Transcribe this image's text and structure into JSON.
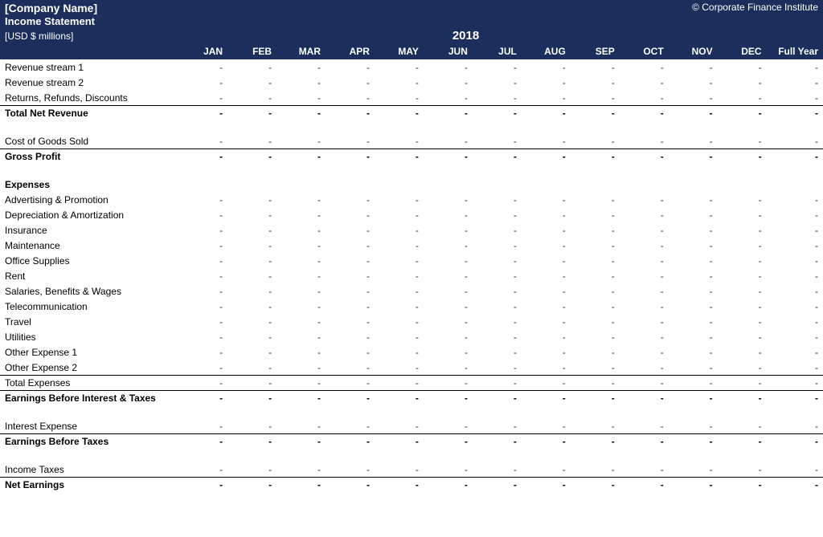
{
  "colors": {
    "header_bg": "#1c2e5b",
    "header_text": "#ffffff",
    "value_text": "#1c2e5b",
    "body_text": "#000000",
    "border": "#000000",
    "background": "#ffffff"
  },
  "header": {
    "company_name": "[Company Name]",
    "copyright": "© Corporate Finance Institute",
    "subtitle": "Income Statement",
    "units": "[USD $ millions]",
    "year": "2018"
  },
  "columns": [
    "JAN",
    "FEB",
    "MAR",
    "APR",
    "MAY",
    "JUN",
    "JUL",
    "AUG",
    "SEP",
    "OCT",
    "NOV",
    "DEC",
    "Full Year"
  ],
  "rows": [
    {
      "label": "Revenue stream 1",
      "type": "data",
      "values": [
        "-",
        "-",
        "-",
        "-",
        "-",
        "-",
        "-",
        "-",
        "-",
        "-",
        "-",
        "-",
        "-"
      ]
    },
    {
      "label": "Revenue stream 2",
      "type": "data",
      "values": [
        "-",
        "-",
        "-",
        "-",
        "-",
        "-",
        "-",
        "-",
        "-",
        "-",
        "-",
        "-",
        "-"
      ]
    },
    {
      "label": "Returns, Refunds, Discounts",
      "type": "data",
      "values": [
        "-",
        "-",
        "-",
        "-",
        "-",
        "-",
        "-",
        "-",
        "-",
        "-",
        "-",
        "-",
        "-"
      ],
      "border_bottom": true
    },
    {
      "label": "Total Net Revenue",
      "type": "total",
      "values": [
        "-",
        "-",
        "-",
        "-",
        "-",
        "-",
        "-",
        "-",
        "-",
        "-",
        "-",
        "-",
        "-"
      ]
    },
    {
      "type": "spacer"
    },
    {
      "label": "Cost of Goods Sold",
      "type": "data",
      "values": [
        "-",
        "-",
        "-",
        "-",
        "-",
        "-",
        "-",
        "-",
        "-",
        "-",
        "-",
        "-",
        "-"
      ],
      "border_bottom": true
    },
    {
      "label": "Gross Profit",
      "type": "total",
      "values": [
        "-",
        "-",
        "-",
        "-",
        "-",
        "-",
        "-",
        "-",
        "-",
        "-",
        "-",
        "-",
        "-"
      ]
    },
    {
      "type": "spacer"
    },
    {
      "label": "Expenses",
      "type": "section"
    },
    {
      "label": "Advertising & Promotion",
      "type": "data",
      "values": [
        "-",
        "-",
        "-",
        "-",
        "-",
        "-",
        "-",
        "-",
        "-",
        "-",
        "-",
        "-",
        "-"
      ]
    },
    {
      "label": "Depreciation & Amortization",
      "type": "data",
      "values": [
        "-",
        "-",
        "-",
        "-",
        "-",
        "-",
        "-",
        "-",
        "-",
        "-",
        "-",
        "-",
        "-"
      ]
    },
    {
      "label": "Insurance",
      "type": "data",
      "values": [
        "-",
        "-",
        "-",
        "-",
        "-",
        "-",
        "-",
        "-",
        "-",
        "-",
        "-",
        "-",
        "-"
      ]
    },
    {
      "label": "Maintenance",
      "type": "data",
      "values": [
        "-",
        "-",
        "-",
        "-",
        "-",
        "-",
        "-",
        "-",
        "-",
        "-",
        "-",
        "-",
        "-"
      ]
    },
    {
      "label": "Office Supplies",
      "type": "data",
      "values": [
        "-",
        "-",
        "-",
        "-",
        "-",
        "-",
        "-",
        "-",
        "-",
        "-",
        "-",
        "-",
        "-"
      ]
    },
    {
      "label": "Rent",
      "type": "data",
      "values": [
        "-",
        "-",
        "-",
        "-",
        "-",
        "-",
        "-",
        "-",
        "-",
        "-",
        "-",
        "-",
        "-"
      ]
    },
    {
      "label": "Salaries, Benefits & Wages",
      "type": "data",
      "values": [
        "-",
        "-",
        "-",
        "-",
        "-",
        "-",
        "-",
        "-",
        "-",
        "-",
        "-",
        "-",
        "-"
      ]
    },
    {
      "label": "Telecommunication",
      "type": "data",
      "values": [
        "-",
        "-",
        "-",
        "-",
        "-",
        "-",
        "-",
        "-",
        "-",
        "-",
        "-",
        "-",
        "-"
      ]
    },
    {
      "label": "Travel",
      "type": "data",
      "values": [
        "-",
        "-",
        "-",
        "-",
        "-",
        "-",
        "-",
        "-",
        "-",
        "-",
        "-",
        "-",
        "-"
      ]
    },
    {
      "label": "Utilities",
      "type": "data",
      "values": [
        "-",
        "-",
        "-",
        "-",
        "-",
        "-",
        "-",
        "-",
        "-",
        "-",
        "-",
        "-",
        "-"
      ]
    },
    {
      "label": "Other Expense 1",
      "type": "data",
      "values": [
        "-",
        "-",
        "-",
        "-",
        "-",
        "-",
        "-",
        "-",
        "-",
        "-",
        "-",
        "-",
        "-"
      ]
    },
    {
      "label": "Other Expense 2",
      "type": "data",
      "values": [
        "-",
        "-",
        "-",
        "-",
        "-",
        "-",
        "-",
        "-",
        "-",
        "-",
        "-",
        "-",
        "-"
      ],
      "border_bottom": true
    },
    {
      "label": "Total Expenses",
      "type": "data",
      "values": [
        "-",
        "-",
        "-",
        "-",
        "-",
        "-",
        "-",
        "-",
        "-",
        "-",
        "-",
        "-",
        "-"
      ],
      "border_bottom": true
    },
    {
      "label": "Earnings Before Interest & Taxes",
      "type": "total",
      "values": [
        "-",
        "-",
        "-",
        "-",
        "-",
        "-",
        "-",
        "-",
        "-",
        "-",
        "-",
        "-",
        "-"
      ]
    },
    {
      "type": "spacer"
    },
    {
      "label": "Interest Expense",
      "type": "data",
      "values": [
        "-",
        "-",
        "-",
        "-",
        "-",
        "-",
        "-",
        "-",
        "-",
        "-",
        "-",
        "-",
        "-"
      ],
      "border_bottom": true
    },
    {
      "label": "Earnings Before Taxes",
      "type": "total",
      "values": [
        "-",
        "-",
        "-",
        "-",
        "-",
        "-",
        "-",
        "-",
        "-",
        "-",
        "-",
        "-",
        "-"
      ]
    },
    {
      "type": "spacer"
    },
    {
      "label": "Income Taxes",
      "type": "data",
      "values": [
        "-",
        "-",
        "-",
        "-",
        "-",
        "-",
        "-",
        "-",
        "-",
        "-",
        "-",
        "-",
        "-"
      ],
      "border_bottom": true
    },
    {
      "label": "Net Earnings",
      "type": "total",
      "values": [
        "-",
        "-",
        "-",
        "-",
        "-",
        "-",
        "-",
        "-",
        "-",
        "-",
        "-",
        "-",
        "-"
      ]
    }
  ]
}
